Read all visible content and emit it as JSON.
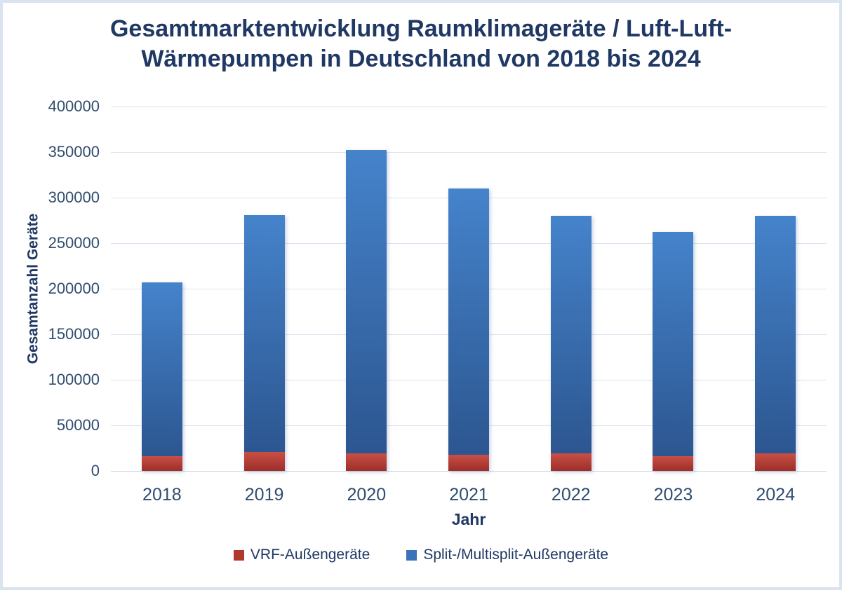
{
  "title": {
    "text": "Gesamtmarktentwicklung Raumklimageräte / Luft-Luft-Wärmepumpen in Deutschland von 2018 bis 2024",
    "lines": [
      "Gesamtmarktentwicklung Raumklimageräte / Luft-Luft-",
      "Wärmepumpen in Deutschland von 2018 bis 2024"
    ],
    "color": "#1f3864"
  },
  "chart_data": {
    "type": "bar",
    "stacked": true,
    "title": "Gesamtmarktentwicklung Raumklimageräte / Luft-Luft-Wärmepumpen in Deutschland von 2018 bis 2024",
    "categories": [
      "2018",
      "2019",
      "2020",
      "2021",
      "2022",
      "2023",
      "2024"
    ],
    "series": [
      {
        "name": "VRF-Außengeräte",
        "values": [
          16000,
          21000,
          19000,
          18000,
          19000,
          16000,
          19000
        ],
        "legend_color": "#b1382f",
        "gradient": [
          "#c94f45",
          "#9c2f29"
        ]
      },
      {
        "name": "Split-/Multisplit-Außengeräte",
        "values": [
          191000,
          260000,
          333000,
          292000,
          261000,
          246000,
          261000
        ],
        "legend_color": "#3a73ba",
        "gradient": [
          "#4583cb",
          "#2c5690"
        ]
      }
    ],
    "totals": [
      207000,
      281000,
      352000,
      310000,
      280000,
      262000,
      280000
    ],
    "xlabel": "Jahr",
    "ylabel": "Gesamtanzahl Geräte",
    "ylim": [
      0,
      400000
    ],
    "yticks": [
      0,
      50000,
      100000,
      150000,
      200000,
      250000,
      300000,
      350000,
      400000
    ],
    "grid": true,
    "legend_position": "bottom",
    "colors": {
      "gridline": "#dbe3f1",
      "axis_text": "#2f4d6e",
      "label_text": "#1f3864",
      "frame_border": "#d9e4f0",
      "background": "#ffffff"
    }
  }
}
